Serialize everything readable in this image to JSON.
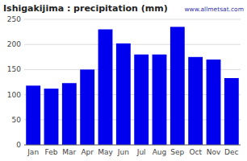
{
  "chart_data": {
    "type": "bar",
    "title": "Ishigakijima : precipitation (mm)",
    "annotation": "www.allmetsat.com",
    "categories": [
      "Jan",
      "Feb",
      "Mar",
      "Apr",
      "May",
      "Jun",
      "Jul",
      "Aug",
      "Sep",
      "Oct",
      "Nov",
      "Dec"
    ],
    "values": [
      118,
      112,
      123,
      150,
      230,
      202,
      180,
      180,
      235,
      175,
      170,
      133
    ],
    "color": "#0000ee",
    "ylim": [
      0,
      250
    ],
    "yticks": [
      0,
      50,
      100,
      150,
      200,
      250
    ],
    "grid": true
  }
}
